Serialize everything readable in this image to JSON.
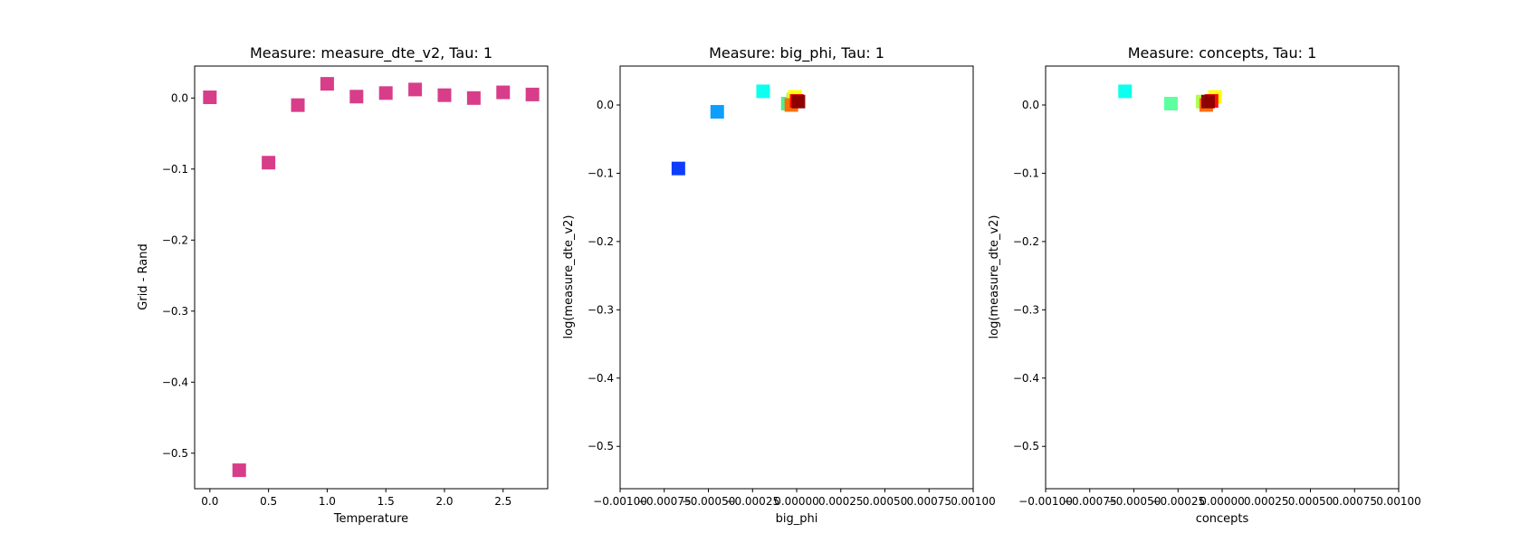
{
  "chart_data": [
    {
      "type": "scatter",
      "title": "Measure: measure_dte_v2, Tau: 1",
      "xlabel": "Temperature",
      "ylabel": "Grid - Rand",
      "xlim": [
        -0.13,
        2.88
      ],
      "ylim": [
        -0.55,
        0.045
      ],
      "xticks": [
        0.0,
        0.5,
        1.0,
        1.5,
        2.0,
        2.5
      ],
      "xtick_labels": [
        "0.0",
        "0.5",
        "1.0",
        "1.5",
        "2.0",
        "2.5"
      ],
      "yticks": [
        0.0,
        -0.1,
        -0.2,
        -0.3,
        -0.4,
        -0.5
      ],
      "ytick_labels": [
        "0.0",
        "−0.1",
        "−0.2",
        "−0.3",
        "−0.4",
        "−0.5"
      ],
      "marker": "square",
      "points": [
        {
          "x": 0.0,
          "y": 0.001,
          "color": "#d63384"
        },
        {
          "x": 0.25,
          "y": -0.524,
          "color": "#d63384"
        },
        {
          "x": 0.5,
          "y": -0.091,
          "color": "#d63384"
        },
        {
          "x": 0.75,
          "y": -0.01,
          "color": "#d63384"
        },
        {
          "x": 1.0,
          "y": 0.02,
          "color": "#d63384"
        },
        {
          "x": 1.25,
          "y": 0.002,
          "color": "#d63384"
        },
        {
          "x": 1.5,
          "y": 0.007,
          "color": "#d63384"
        },
        {
          "x": 1.75,
          "y": 0.012,
          "color": "#d63384"
        },
        {
          "x": 2.0,
          "y": 0.004,
          "color": "#d63384"
        },
        {
          "x": 2.25,
          "y": 0.0,
          "color": "#d63384"
        },
        {
          "x": 2.5,
          "y": 0.008,
          "color": "#d63384"
        },
        {
          "x": 2.75,
          "y": 0.005,
          "color": "#d63384"
        }
      ]
    },
    {
      "type": "scatter",
      "title": "Measure: big_phi, Tau: 1",
      "xlabel": "big_phi",
      "ylabel": "log(measure_dte_v2)",
      "xlim": [
        -0.001,
        0.001
      ],
      "ylim": [
        -0.562,
        0.057
      ],
      "xticks": [
        -0.001,
        -0.00075,
        -0.0005,
        -0.00025,
        0.0,
        0.00025,
        0.0005,
        0.00075,
        0.001
      ],
      "xtick_labels": [
        "−0.00100",
        "−0.00075",
        "−0.00050",
        "−0.00025",
        "0.00000",
        "0.00025",
        "0.00050",
        "0.00075",
        "0.00100"
      ],
      "yticks": [
        0.0,
        -0.1,
        -0.2,
        -0.3,
        -0.4,
        -0.5
      ],
      "ytick_labels": [
        "0.0",
        "−0.1",
        "−0.2",
        "−0.3",
        "−0.4",
        "−0.5"
      ],
      "marker": "square",
      "points": [
        {
          "x": -0.00067,
          "y": -0.093,
          "color": "#0033ff"
        },
        {
          "x": -0.00045,
          "y": -0.01,
          "color": "#0099ff"
        },
        {
          "x": -0.00019,
          "y": 0.02,
          "color": "#00ffee"
        },
        {
          "x": -5e-05,
          "y": 0.002,
          "color": "#44ee88"
        },
        {
          "x": -2e-05,
          "y": 0.008,
          "color": "#aaff44"
        },
        {
          "x": -1e-05,
          "y": 0.012,
          "color": "#ffff00"
        },
        {
          "x": -3e-05,
          "y": 0.0,
          "color": "#ff6600"
        },
        {
          "x": 0.0,
          "y": 0.006,
          "color": "#ff0000"
        },
        {
          "x": 1e-05,
          "y": 0.005,
          "color": "#880000"
        }
      ]
    },
    {
      "type": "scatter",
      "title": "Measure: concepts, Tau: 1",
      "xlabel": "concepts",
      "ylabel": "log(measure_dte_v2)",
      "xlim": [
        -0.001,
        0.001
      ],
      "ylim": [
        -0.562,
        0.057
      ],
      "xticks": [
        -0.001,
        -0.00075,
        -0.0005,
        -0.00025,
        0.0,
        0.00025,
        0.0005,
        0.00075,
        0.001
      ],
      "xtick_labels": [
        "−0.00100",
        "−0.00075",
        "−0.00050",
        "−0.00025",
        "0.00000",
        "0.00025",
        "0.00050",
        "0.00075",
        "0.00100"
      ],
      "yticks": [
        0.0,
        -0.1,
        -0.2,
        -0.3,
        -0.4,
        -0.5
      ],
      "ytick_labels": [
        "0.0",
        "−0.1",
        "−0.2",
        "−0.3",
        "−0.4",
        "−0.5"
      ],
      "marker": "square",
      "points": [
        {
          "x": -0.00055,
          "y": 0.02,
          "color": "#00ffee"
        },
        {
          "x": -0.00029,
          "y": 0.002,
          "color": "#55ff99"
        },
        {
          "x": -0.00011,
          "y": 0.005,
          "color": "#aaff44"
        },
        {
          "x": -4e-05,
          "y": 0.012,
          "color": "#ffff00"
        },
        {
          "x": -9e-05,
          "y": 0.0,
          "color": "#ff6600"
        },
        {
          "x": -6e-05,
          "y": 0.006,
          "color": "#ff0000"
        },
        {
          "x": -8e-05,
          "y": 0.005,
          "color": "#880000"
        }
      ]
    }
  ]
}
